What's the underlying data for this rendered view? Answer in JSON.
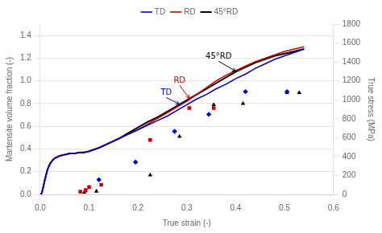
{
  "chart_data": {
    "type": "line",
    "xlabel": "True strain (-)",
    "ylabel": "Martensite volume fraction (-)",
    "y2label": "True stress (MPa)",
    "xlim": [
      0,
      0.6
    ],
    "ylim": [
      0,
      1.5
    ],
    "y2lim": [
      0,
      1800
    ],
    "xticks": [
      {
        "value": 0.0,
        "label": "0.0"
      },
      0.1,
      0.2,
      0.3,
      0.4,
      0.5,
      0.6
    ],
    "yticks": [
      {
        "value": 0,
        "label": "0.0"
      },
      0.2,
      0.4,
      0.6,
      0.8,
      {
        "value": 1.0,
        "label": "1.0"
      },
      1.2,
      1.4
    ],
    "y2ticks": [
      0,
      200,
      400,
      600,
      800,
      1000,
      1200,
      1400,
      1600,
      1800
    ],
    "grid": "y",
    "legend": "top",
    "series": [
      {
        "name": "TD",
        "type": "line",
        "color": "#0000cc",
        "x": [
          0.0,
          0.003,
          0.006,
          0.01,
          0.015,
          0.02,
          0.025,
          0.03,
          0.04,
          0.05,
          0.06,
          0.07,
          0.08,
          0.09,
          0.1,
          0.12,
          0.14,
          0.16,
          0.18,
          0.2,
          0.22,
          0.24,
          0.26,
          0.28,
          0.3,
          0.32,
          0.34,
          0.36,
          0.38,
          0.4,
          0.42,
          0.44,
          0.46,
          0.48,
          0.5,
          0.52,
          0.54
        ],
        "values": [
          0.0,
          0.01,
          0.06,
          0.14,
          0.22,
          0.27,
          0.3,
          0.32,
          0.34,
          0.35,
          0.36,
          0.36,
          0.37,
          0.37,
          0.38,
          0.41,
          0.45,
          0.49,
          0.53,
          0.57,
          0.61,
          0.65,
          0.69,
          0.74,
          0.79,
          0.84,
          0.88,
          0.93,
          0.97,
          1.02,
          1.06,
          1.11,
          1.15,
          1.19,
          1.22,
          1.25,
          1.28
        ]
      },
      {
        "name": "RD",
        "type": "line",
        "color": "#cc0000",
        "x": [
          0.0,
          0.003,
          0.006,
          0.01,
          0.015,
          0.02,
          0.025,
          0.03,
          0.04,
          0.05,
          0.06,
          0.07,
          0.08,
          0.09,
          0.1,
          0.12,
          0.14,
          0.16,
          0.18,
          0.2,
          0.22,
          0.24,
          0.26,
          0.28,
          0.3,
          0.32,
          0.34,
          0.36,
          0.38,
          0.4,
          0.42,
          0.44,
          0.46,
          0.48,
          0.5,
          0.52,
          0.54
        ],
        "values": [
          0.0,
          0.01,
          0.06,
          0.14,
          0.22,
          0.27,
          0.3,
          0.32,
          0.34,
          0.35,
          0.36,
          0.36,
          0.37,
          0.37,
          0.38,
          0.41,
          0.45,
          0.49,
          0.53,
          0.57,
          0.62,
          0.67,
          0.72,
          0.77,
          0.82,
          0.88,
          0.94,
          1.0,
          1.05,
          1.09,
          1.13,
          1.17,
          1.2,
          1.23,
          1.26,
          1.28,
          1.3
        ]
      },
      {
        "name": "45°RD",
        "type": "line",
        "color": "#000000",
        "x": [
          0.0,
          0.003,
          0.006,
          0.01,
          0.015,
          0.02,
          0.025,
          0.03,
          0.04,
          0.05,
          0.06,
          0.07,
          0.08,
          0.09,
          0.1,
          0.12,
          0.14,
          0.16,
          0.18,
          0.2,
          0.22,
          0.24,
          0.26,
          0.28,
          0.3,
          0.32,
          0.34,
          0.36,
          0.38,
          0.4,
          0.42,
          0.44,
          0.46,
          0.48,
          0.5,
          0.52,
          0.54
        ],
        "values": [
          0.0,
          0.01,
          0.06,
          0.14,
          0.22,
          0.27,
          0.3,
          0.32,
          0.34,
          0.35,
          0.36,
          0.36,
          0.37,
          0.37,
          0.38,
          0.41,
          0.45,
          0.49,
          0.54,
          0.59,
          0.64,
          0.68,
          0.73,
          0.78,
          0.83,
          0.88,
          0.93,
          0.98,
          1.03,
          1.08,
          1.12,
          1.16,
          1.19,
          1.22,
          1.24,
          1.26,
          1.28
        ]
      },
      {
        "type": "scatter",
        "color": "#0000cc",
        "marker": "diamond",
        "x": [
          0.12,
          0.195,
          0.275,
          0.345,
          0.42,
          0.505
        ],
        "values": [
          0.13,
          0.285,
          0.555,
          0.705,
          0.905,
          0.905
        ]
      },
      {
        "type": "scatter",
        "color": "#cc0000",
        "marker": "square",
        "x": [
          0.082,
          0.093,
          0.1,
          0.125,
          0.225,
          0.305,
          0.355
        ],
        "values": [
          0.025,
          0.038,
          0.065,
          0.085,
          0.48,
          0.76,
          0.76
        ]
      },
      {
        "type": "scatter",
        "color": "#000000",
        "marker": "triangle",
        "x": [
          0.09,
          0.115,
          0.225,
          0.285,
          0.355,
          0.415,
          0.505,
          0.53
        ],
        "values": [
          0.018,
          0.028,
          0.17,
          0.51,
          0.79,
          0.8,
          0.895,
          0.895
        ]
      }
    ],
    "annotations": [
      {
        "text": "TD",
        "xy": [
          0.285,
          0.795
        ],
        "xytext": [
          0.258,
          0.86
        ],
        "color": "#0000cc"
      },
      {
        "text": "RD",
        "xy": [
          0.305,
          0.845
        ],
        "xytext": [
          0.285,
          0.97
        ],
        "color": "#cc0000"
      },
      {
        "text": "45°RD",
        "xy": [
          0.4,
          1.085
        ],
        "xytext": [
          0.365,
          1.18
        ],
        "color": "#000000"
      }
    ]
  }
}
